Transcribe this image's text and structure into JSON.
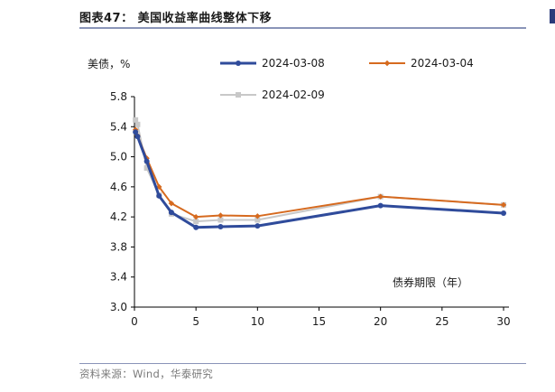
{
  "header": {
    "title": "图表47：   美国收益率曲线整体下移"
  },
  "footer": {
    "source": "资料来源：Wind，华泰研究"
  },
  "chart_data": {
    "type": "line",
    "title": "图表47：   美国收益率曲线整体下移",
    "ylabel": "美债，%",
    "xlabel": "债券期限（年）",
    "xlim": [
      0,
      30
    ],
    "ylim": [
      3.0,
      5.8
    ],
    "xticks": [
      0,
      5,
      10,
      15,
      20,
      25,
      30
    ],
    "yticks": [
      3.0,
      3.4,
      3.8,
      4.2,
      4.6,
      5.0,
      5.4,
      5.8
    ],
    "ytick_labels": [
      "3.0",
      "3.4",
      "3.8",
      "4.2",
      "4.6",
      "5.0",
      "5.4",
      "5.8"
    ],
    "grid": false,
    "legend_position": "top",
    "series": [
      {
        "name": "2024-03-08",
        "color": "#2f4b9b",
        "marker": "circle",
        "x": [
          0.083,
          0.25,
          1,
          2,
          3,
          5,
          7,
          10,
          20,
          30
        ],
        "y": [
          5.33,
          5.27,
          4.94,
          4.48,
          4.26,
          4.06,
          4.07,
          4.08,
          4.35,
          4.25
        ]
      },
      {
        "name": "2024-03-04",
        "color": "#d66a1f",
        "marker": "diamond",
        "x": [
          0.083,
          0.25,
          1,
          2,
          3,
          5,
          7,
          10,
          20,
          30
        ],
        "y": [
          5.36,
          5.28,
          4.98,
          4.6,
          4.38,
          4.2,
          4.22,
          4.21,
          4.47,
          4.36
        ]
      },
      {
        "name": "2024-02-09",
        "color": "#c8c8c8",
        "marker": "square",
        "x": [
          0.083,
          0.25,
          1,
          2,
          3,
          5,
          7,
          10,
          20,
          30
        ],
        "y": [
          5.49,
          5.43,
          4.85,
          4.49,
          4.24,
          4.14,
          4.16,
          4.16,
          4.47,
          4.36
        ]
      }
    ]
  }
}
